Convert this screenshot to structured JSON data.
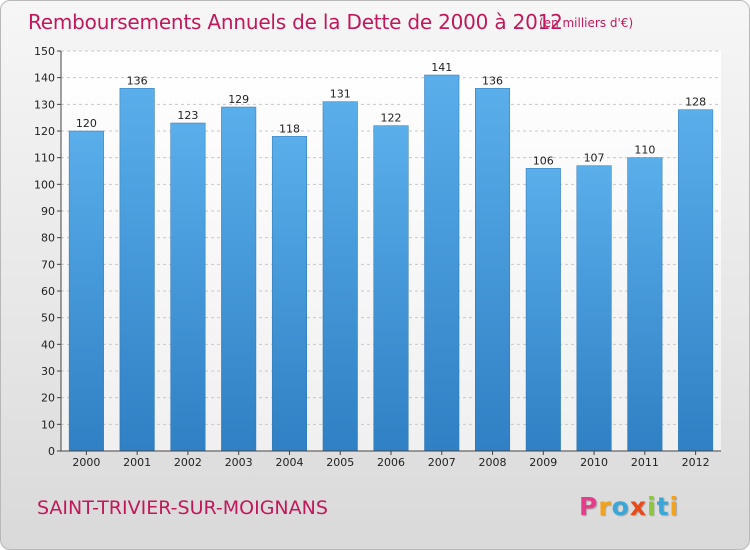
{
  "header": {
    "title": "Remboursements Annuels de la Dette de 2000 à 2012",
    "unit": "(en milliers d'€)"
  },
  "footer": {
    "commune": "SAINT-TRIVIER-SUR-MOIGNANS",
    "logo_letters": [
      "P",
      "r",
      "o",
      "x",
      "i",
      "t",
      "i"
    ],
    "logo_colors": [
      "#e63c8b",
      "#f2a31b",
      "#3aa7d8",
      "#e84a1a",
      "#8cc63f",
      "#3aa7d8",
      "#f2a31b"
    ]
  },
  "chart_data": {
    "type": "bar",
    "categories": [
      "2000",
      "2001",
      "2002",
      "2003",
      "2004",
      "2005",
      "2006",
      "2007",
      "2008",
      "2009",
      "2010",
      "2011",
      "2012"
    ],
    "values": [
      120,
      136,
      123,
      129,
      118,
      131,
      122,
      141,
      136,
      106,
      107,
      110,
      128
    ],
    "title": "Remboursements Annuels de la Dette de 2000 à 2012",
    "ylim": [
      0,
      150
    ],
    "yticks": [
      0,
      10,
      20,
      30,
      40,
      50,
      60,
      70,
      80,
      90,
      100,
      110,
      120,
      130,
      140,
      150
    ],
    "grid": true,
    "bar_color": "#4a9fe0"
  }
}
